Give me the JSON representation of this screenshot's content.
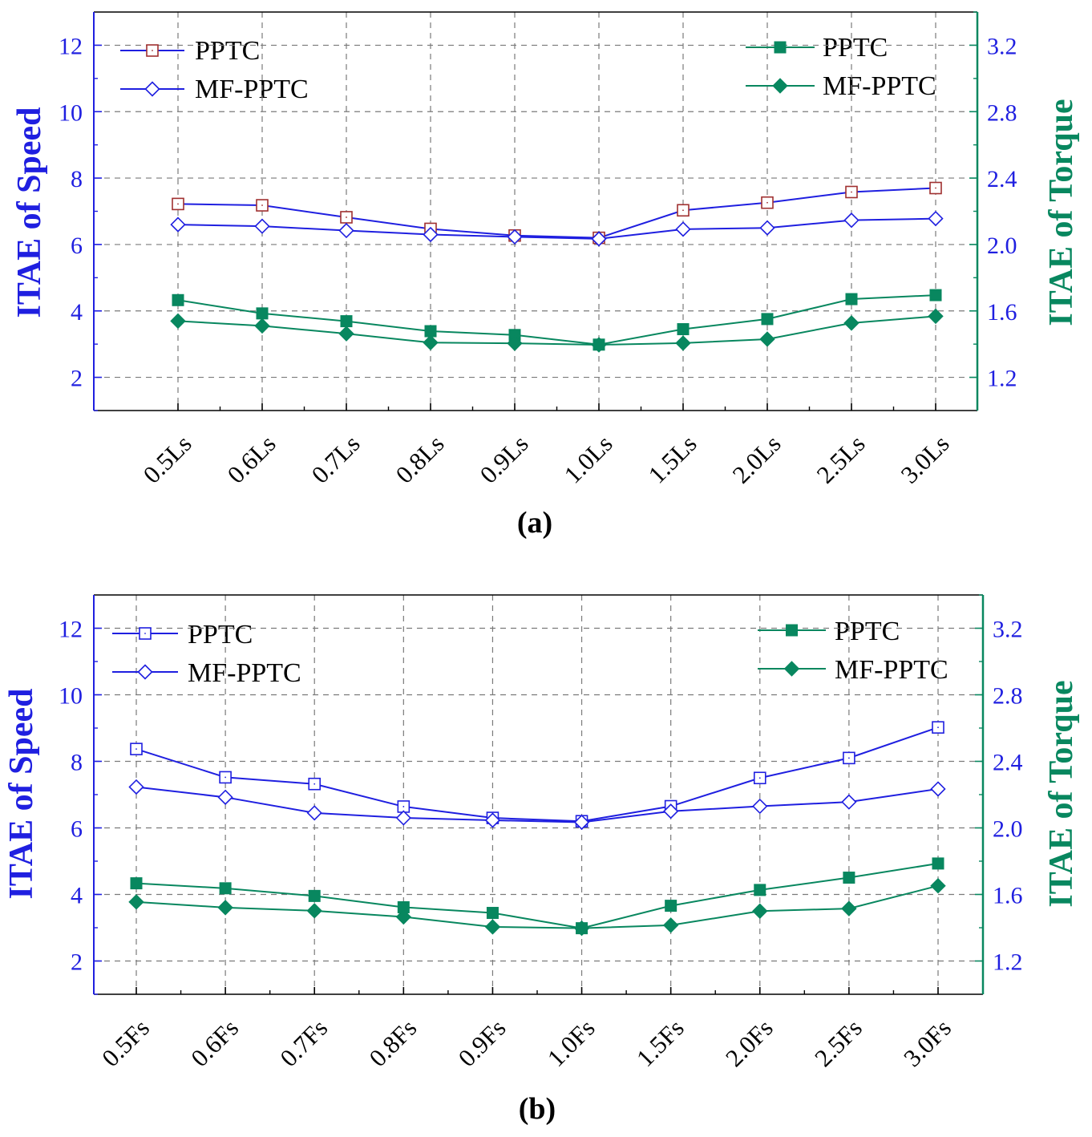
{
  "colors": {
    "speed": "#1f1fe0",
    "torque": "#08875f",
    "ppt_speed_marker_a": "#a03030",
    "grid": "#7a7a7a"
  },
  "chart_data": [
    {
      "type": "line",
      "panel_label": "(a)",
      "categories": [
        "0.5Ls",
        "0.6Ls",
        "0.7Ls",
        "0.8Ls",
        "0.9Ls",
        "1.0Ls",
        "1.5Ls",
        "2.0Ls",
        "2.5Ls",
        "3.0Ls"
      ],
      "ylabel_left": "ITAE of Speed",
      "ylabel_right": "ITAE of Torque",
      "ylim_left": [
        1,
        13
      ],
      "ylim_right": [
        1.0,
        3.4
      ],
      "yticks_left": [
        "2",
        "4",
        "6",
        "8",
        "10",
        "12"
      ],
      "yticks_right": [
        "1.2",
        "1.6",
        "2.0",
        "2.4",
        "2.8",
        "3.2"
      ],
      "grid": true,
      "series": [
        {
          "name": "PPTC",
          "axis": "left",
          "marker": "open-square",
          "values": [
            7.22,
            7.18,
            6.82,
            6.47,
            6.27,
            6.2,
            7.03,
            7.26,
            7.58,
            7.7
          ]
        },
        {
          "name": "MF-PPTC",
          "axis": "left",
          "marker": "open-diamond",
          "values": [
            6.6,
            6.55,
            6.42,
            6.3,
            6.23,
            6.17,
            6.46,
            6.5,
            6.73,
            6.78
          ]
        },
        {
          "name": "PPTC",
          "axis": "right",
          "marker": "filled-square",
          "values": [
            1.665,
            1.585,
            1.538,
            1.478,
            1.455,
            1.397,
            1.49,
            1.551,
            1.671,
            1.695
          ]
        },
        {
          "name": "MF-PPTC",
          "axis": "right",
          "marker": "filled-diamond",
          "values": [
            1.539,
            1.51,
            1.463,
            1.409,
            1.405,
            1.396,
            1.406,
            1.43,
            1.527,
            1.568
          ]
        }
      ],
      "legend_left": [
        "PPTC",
        "MF-PPTC"
      ],
      "legend_right": [
        "PPTC",
        "MF-PPTC"
      ]
    },
    {
      "type": "line",
      "panel_label": "(b)",
      "categories": [
        "0.5Fs",
        "0.6Fs",
        "0.7Fs",
        "0.8Fs",
        "0.9Fs",
        "1.0Fs",
        "1.5Fs",
        "2.0Fs",
        "2.5Fs",
        "3.0Fs"
      ],
      "ylabel_left": "ITAE of Speed",
      "ylabel_right": "ITAE of Torque",
      "ylim_left": [
        1,
        13
      ],
      "ylim_right": [
        1.0,
        3.4
      ],
      "yticks_left": [
        "2",
        "4",
        "6",
        "8",
        "10",
        "12"
      ],
      "yticks_right": [
        "1.2",
        "1.6",
        "2.0",
        "2.4",
        "2.8",
        "3.2"
      ],
      "grid": true,
      "series": [
        {
          "name": "PPTC",
          "axis": "left",
          "marker": "open-square",
          "values": [
            8.37,
            7.52,
            7.32,
            6.64,
            6.3,
            6.2,
            6.65,
            7.5,
            8.1,
            9.02
          ]
        },
        {
          "name": "MF-PPTC",
          "axis": "left",
          "marker": "open-diamond",
          "values": [
            7.23,
            6.92,
            6.45,
            6.3,
            6.23,
            6.17,
            6.5,
            6.65,
            6.78,
            7.17
          ]
        },
        {
          "name": "PPTC",
          "axis": "right",
          "marker": "filled-square",
          "values": [
            1.667,
            1.637,
            1.591,
            1.523,
            1.489,
            1.397,
            1.532,
            1.627,
            1.701,
            1.786
          ]
        },
        {
          "name": "MF-PPTC",
          "axis": "right",
          "marker": "filled-diamond",
          "values": [
            1.555,
            1.521,
            1.502,
            1.465,
            1.405,
            1.397,
            1.415,
            1.5,
            1.515,
            1.652
          ]
        }
      ],
      "legend_left": [
        "PPTC",
        "MF-PPTC"
      ],
      "legend_right": [
        "PPTC",
        "MF-PPTC"
      ]
    }
  ]
}
